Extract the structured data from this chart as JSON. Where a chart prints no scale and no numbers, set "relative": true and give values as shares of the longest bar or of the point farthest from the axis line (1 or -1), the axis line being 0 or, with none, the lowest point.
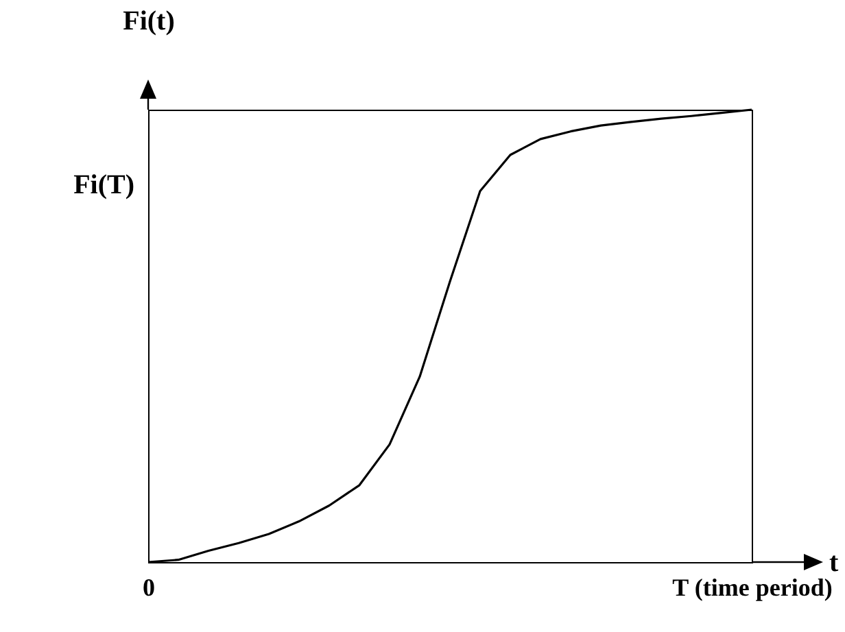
{
  "chart_data": {
    "type": "line",
    "relative": true,
    "xlabel": "t",
    "ylabel": "Fi(t)",
    "categories": [
      "0",
      null,
      null,
      null,
      null,
      null,
      null,
      null,
      null,
      null,
      null,
      null,
      null,
      null,
      null,
      null,
      null,
      null,
      null,
      null,
      "T (time period)"
    ],
    "series": [
      {
        "color": "#000000",
        "values": [
          0,
          0.005,
          0.025,
          0.042,
          0.062,
          0.09,
          0.125,
          0.17,
          0.26,
          0.41,
          0.62,
          0.82,
          0.9,
          0.935,
          0.952,
          0.965,
          0.973,
          0.98,
          0.986,
          0.993,
          1
        ]
      }
    ],
    "annotations": [
      "Fi(T)"
    ],
    "grid": false,
    "marker": "none",
    "line_style": "solid"
  }
}
